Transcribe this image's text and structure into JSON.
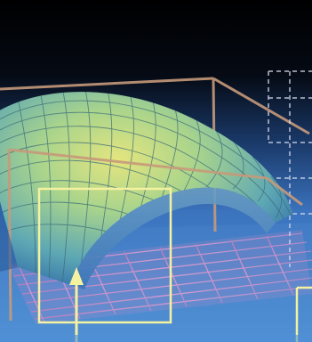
{
  "scene": {
    "subject": "3d-wireframe-curved-surface",
    "colors": {
      "sky_top": "#000000",
      "sky_bottom": "#1a3a6a",
      "floor": "#3f78c4",
      "floor_far": "#5aa0e0",
      "surface_light": "#d8e27a",
      "surface_mid": "#7ec0a8",
      "surface_dark": "#2c6aa8",
      "grid_line": "#3a6a7a",
      "box_frame": "#c69a7a",
      "floor_grid": "#e6a0d0",
      "highlight_frame": "#f4f2a0",
      "arrow": "#f4f2a0",
      "dashed_frame": "#d8dcf0"
    }
  }
}
